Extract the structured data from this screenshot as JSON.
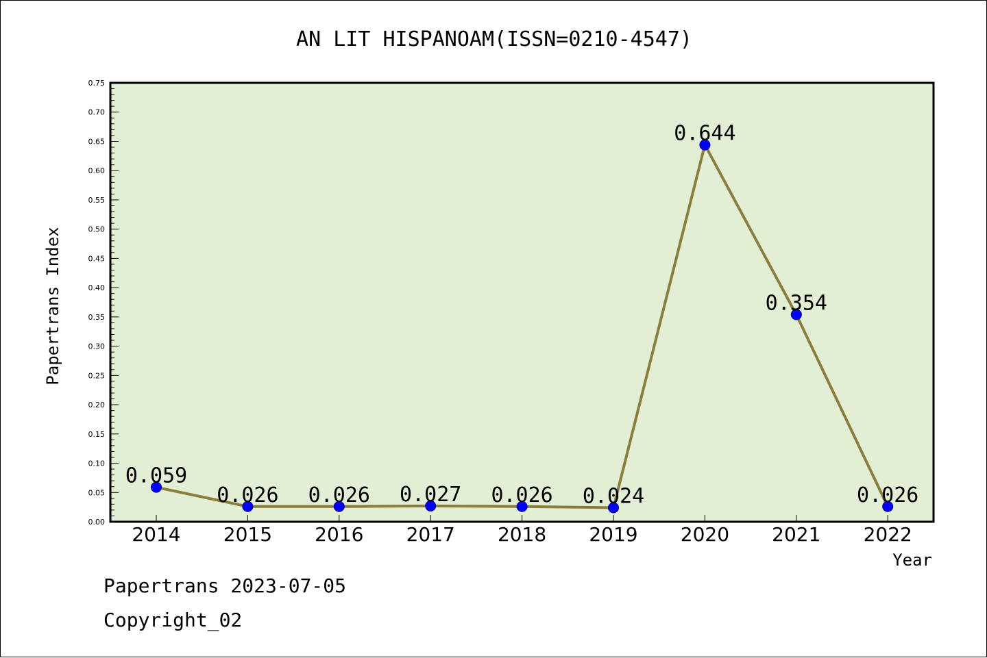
{
  "colors": {
    "plot_background": "#e2efd5",
    "line": "#8b7d3a",
    "marker_fill": "#0000ff",
    "marker_stroke": "#00008b",
    "frame": "#000000"
  },
  "footer": {
    "line1": "Papertrans 2023-07-05",
    "line2": "Copyright_02"
  },
  "chart_data": {
    "type": "line",
    "title": "AN LIT HISPANOAM(ISSN=0210-4547)",
    "xlabel": "Year",
    "ylabel": "Papertrans Index",
    "categories": [
      "2014",
      "2015",
      "2016",
      "2017",
      "2018",
      "2019",
      "2020",
      "2021",
      "2022"
    ],
    "values": [
      0.059,
      0.026,
      0.026,
      0.027,
      0.026,
      0.024,
      0.644,
      0.354,
      0.026
    ],
    "data_labels": [
      "0.059",
      "0.026",
      "0.026",
      "0.027",
      "0.026",
      "0.024",
      "0.644",
      "0.354",
      "0.026"
    ],
    "ylim": [
      0,
      0.75
    ],
    "yticks": [
      "0.00",
      "0.05",
      "0.10",
      "0.15",
      "0.20",
      "0.25",
      "0.30",
      "0.35",
      "0.40",
      "0.45",
      "0.50",
      "0.55",
      "0.60",
      "0.65",
      "0.70",
      "0.75"
    ],
    "grid": false,
    "legend": "none"
  }
}
